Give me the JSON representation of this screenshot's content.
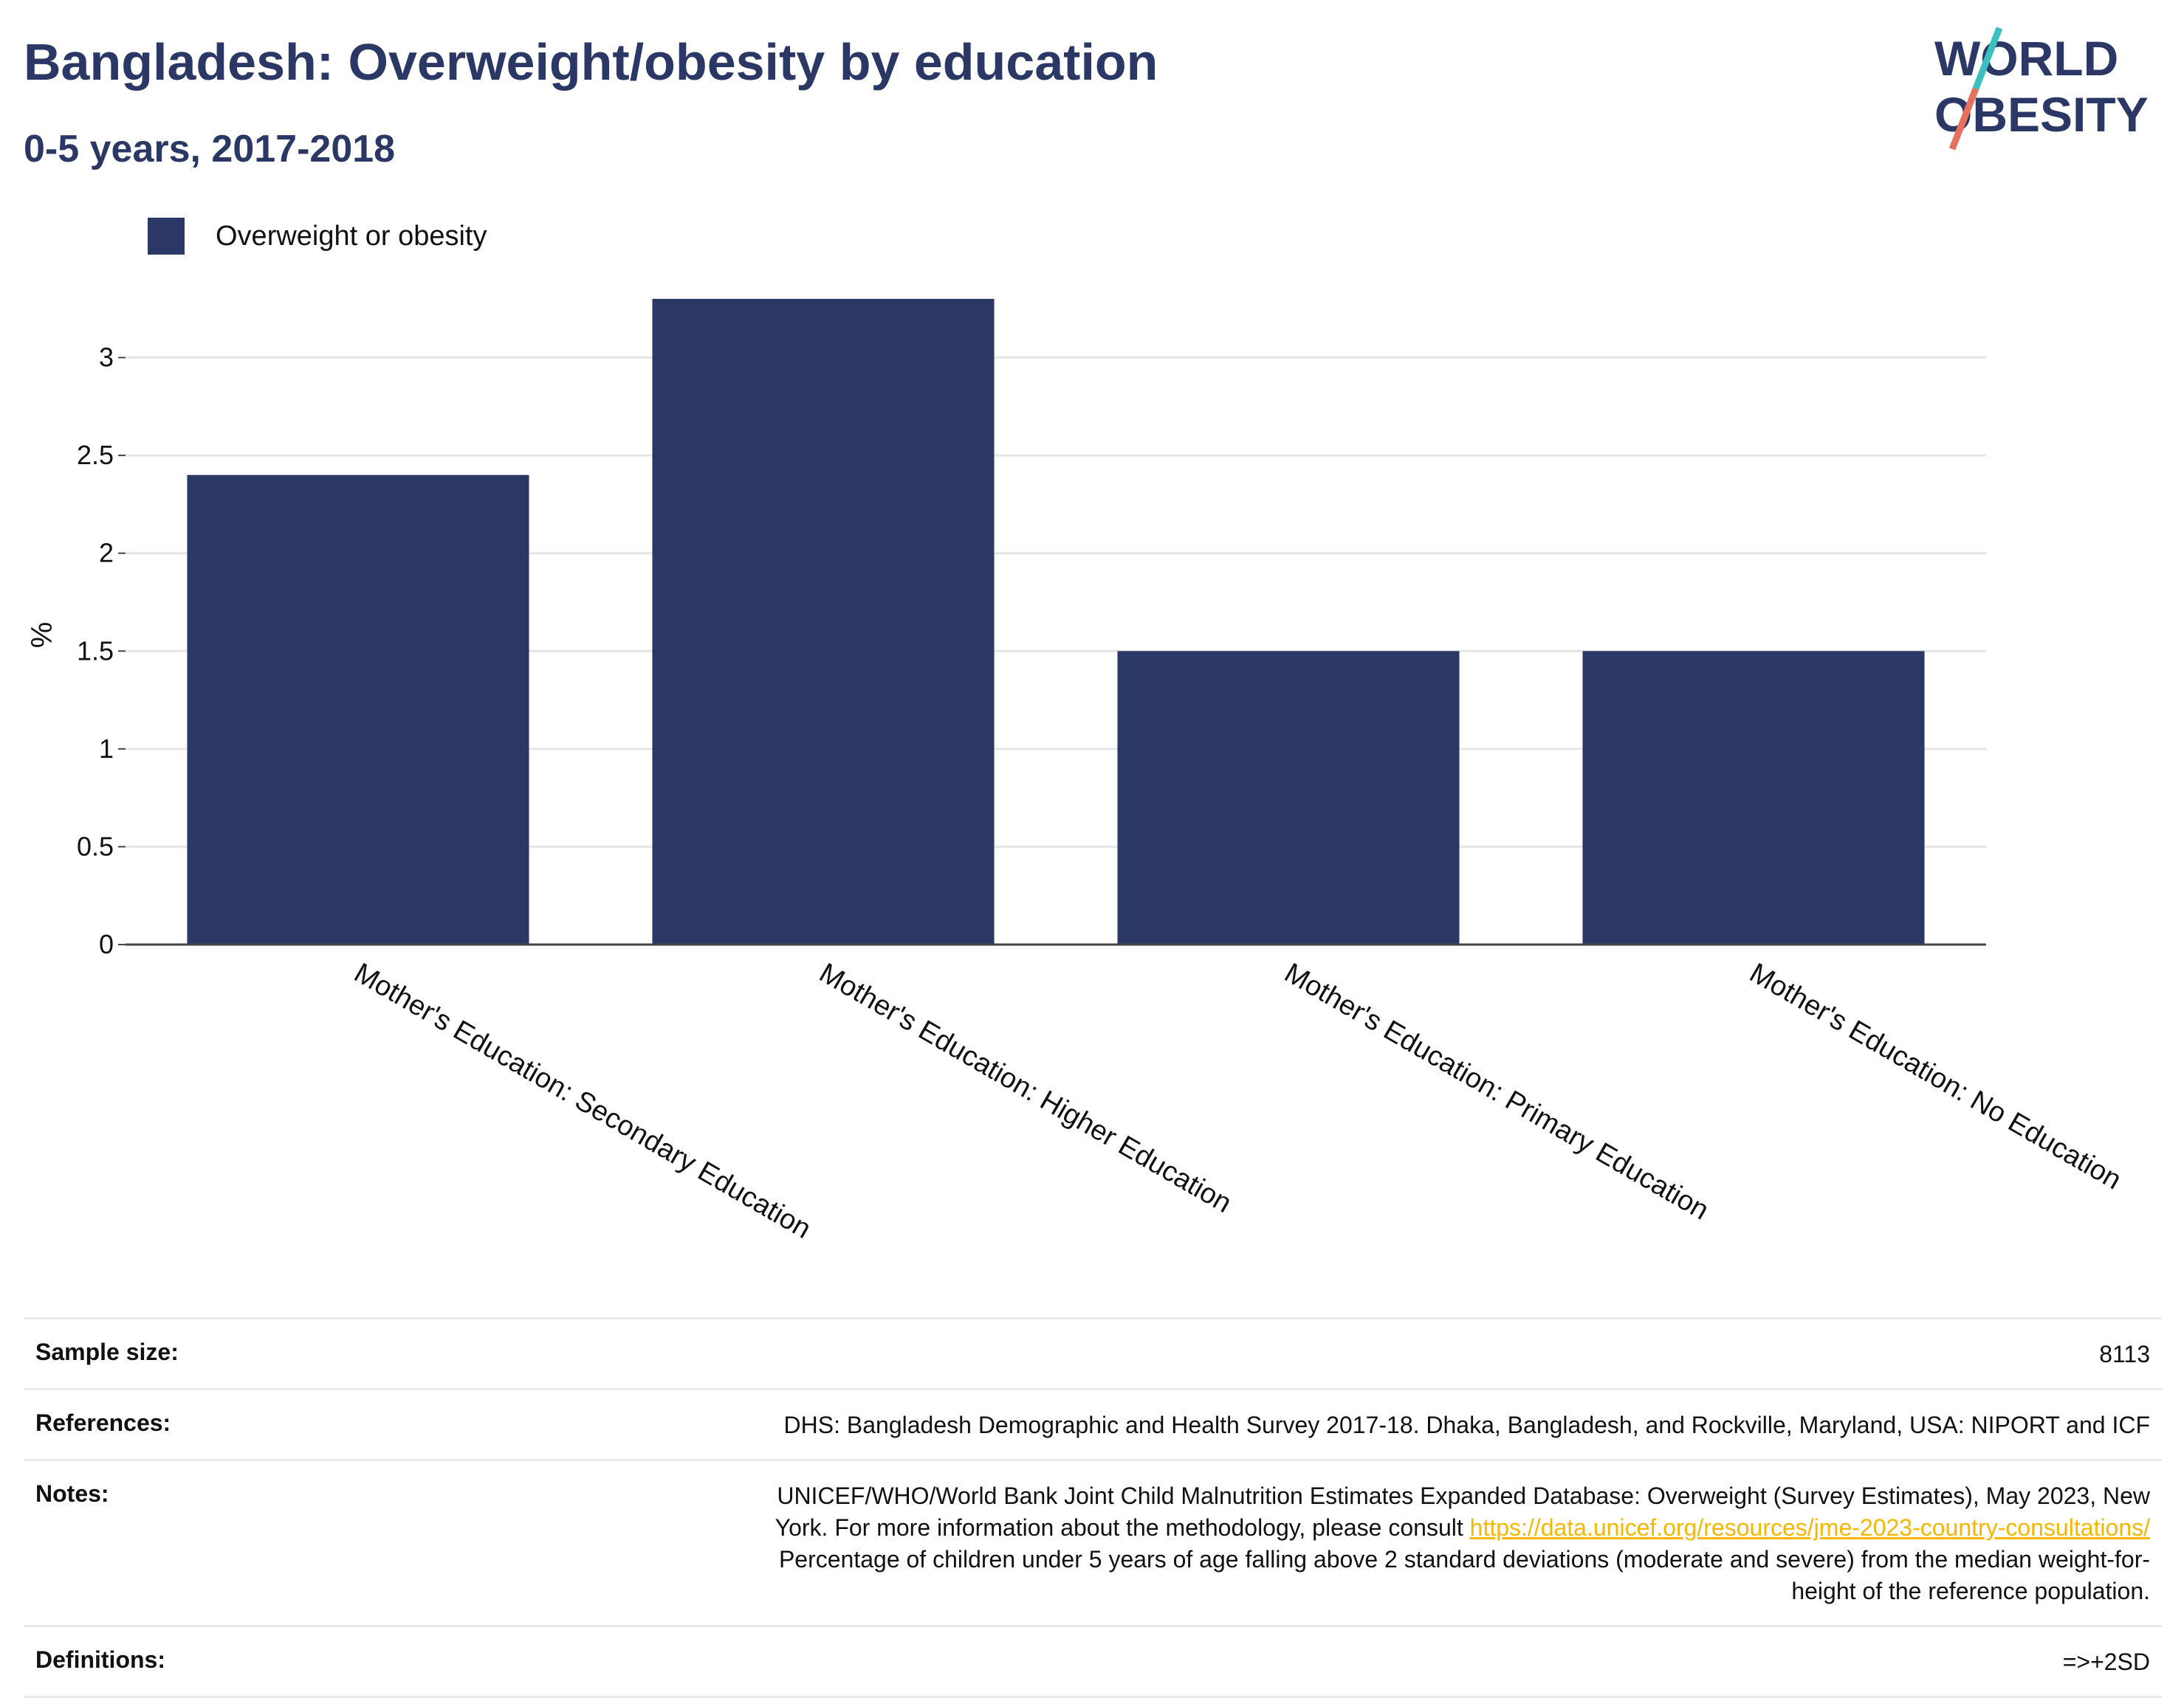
{
  "header": {
    "title": "Bangladesh: Overweight/obesity by education",
    "subtitle": "0-5 years, 2017-2018"
  },
  "logo": {
    "line1": "WORLD",
    "line2": "OBESITY",
    "colors": {
      "text": "#2b3865",
      "slash_top": "#3bbfbf",
      "slash_bottom": "#e8705f"
    }
  },
  "colors": {
    "bar": "#2b3865",
    "grid": "#e6e6e6",
    "axis": "#444444",
    "link": "#f5b700"
  },
  "legend": {
    "label": "Overweight or obesity",
    "placement": "top-left"
  },
  "chart_data": {
    "type": "bar",
    "title": "Bangladesh: Overweight/obesity by education",
    "subtitle": "0-5 years, 2017-2018",
    "xlabel": "",
    "ylabel": "%",
    "categories": [
      "Mother's Education: Secondary Education",
      "Mother's Education: Higher Education",
      "Mother's Education: Primary Education",
      "Mother's Education: No Education"
    ],
    "series": [
      {
        "name": "Overweight or obesity",
        "values": [
          2.4,
          3.3,
          1.5,
          1.5
        ]
      }
    ],
    "ylim": [
      0,
      3.3
    ],
    "yticks": [
      0,
      0.5,
      1,
      1.5,
      2,
      2.5,
      3
    ],
    "ytick_labels": [
      "0",
      "0.5",
      "1",
      "1.5",
      "2",
      "2.5",
      "3"
    ],
    "grid": true
  },
  "meta": {
    "sample_size": {
      "label": "Sample size:",
      "value": "8113"
    },
    "references": {
      "label": "References:",
      "value": "DHS: Bangladesh Demographic and Health Survey 2017-18. Dhaka, Bangladesh, and Rockville, Maryland, USA: NIPORT and ICF"
    },
    "notes": {
      "label": "Notes:",
      "line1": "UNICEF/WHO/World Bank Joint Child Malnutrition Estimates Expanded Database: Overweight (Survey Estimates), May 2023, New",
      "line2_prefix": "York. For more information about the methodology, please consult ",
      "link": "https://data.unicef.org/resources/jme-2023-country-consultations/",
      "line3": "Percentage of children under 5 years of age falling above 2 standard deviations (moderate and severe) from the median weight-for-",
      "line4": "height of the reference population."
    },
    "definitions": {
      "label": "Definitions:",
      "value": "=>+2SD"
    }
  }
}
